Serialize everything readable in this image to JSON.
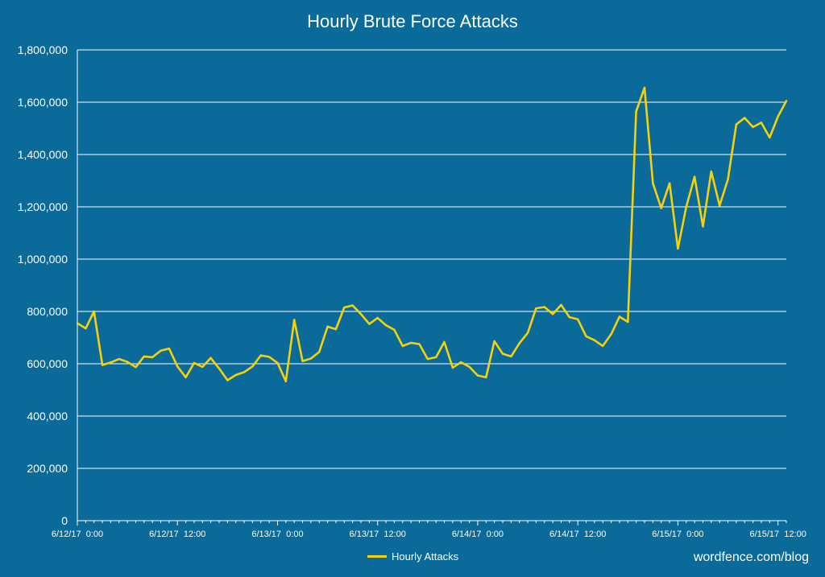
{
  "colors": {
    "background": "#0a6a9a",
    "line": "#f5d20a",
    "grid": "#ffffff",
    "text": "#ffffff"
  },
  "watermark": "wordfence.com/blog",
  "chart_data": {
    "type": "line",
    "title": "Hourly Brute Force Attacks",
    "xlabel": "",
    "ylabel": "",
    "ylim": [
      0,
      1800000
    ],
    "yticks": [
      0,
      200000,
      400000,
      600000,
      800000,
      1000000,
      1200000,
      1400000,
      1600000,
      1800000
    ],
    "ytick_labels": [
      "0",
      "200,000",
      "400,000",
      "600,000",
      "800,000",
      "1,000,000",
      "1,200,000",
      "1,400,000",
      "1,600,000",
      "1,800,000"
    ],
    "xtick_labels": [
      "6/12/17  0:00",
      "6/12/17  12:00",
      "6/13/17  0:00",
      "6/13/17  12:00",
      "6/14/17  0:00",
      "6/14/17  12:00",
      "6/15/17  0:00",
      "6/15/17  12:00"
    ],
    "grid": true,
    "legend": {
      "position": "bottom",
      "entries": [
        "Hourly Attacks"
      ]
    },
    "series": [
      {
        "name": "Hourly Attacks",
        "values": [
          755000,
          735000,
          800000,
          595000,
          605000,
          618000,
          607000,
          587000,
          628000,
          625000,
          650000,
          658000,
          590000,
          548000,
          603000,
          588000,
          622000,
          582000,
          537000,
          557000,
          568000,
          590000,
          632000,
          626000,
          603000,
          533000,
          768000,
          610000,
          620000,
          645000,
          742000,
          732000,
          815000,
          823000,
          790000,
          752000,
          775000,
          747000,
          730000,
          668000,
          680000,
          675000,
          618000,
          625000,
          683000,
          585000,
          606000,
          588000,
          555000,
          548000,
          686000,
          638000,
          628000,
          678000,
          718000,
          812000,
          817000,
          790000,
          825000,
          778000,
          770000,
          705000,
          690000,
          668000,
          713000,
          780000,
          760000,
          1565000,
          1655000,
          1290000,
          1195000,
          1290000,
          1040000,
          1200000,
          1315000,
          1125000,
          1335000,
          1205000,
          1305000,
          1515000,
          1540000,
          1505000,
          1522000,
          1465000,
          1545000,
          1605000
        ]
      }
    ]
  }
}
